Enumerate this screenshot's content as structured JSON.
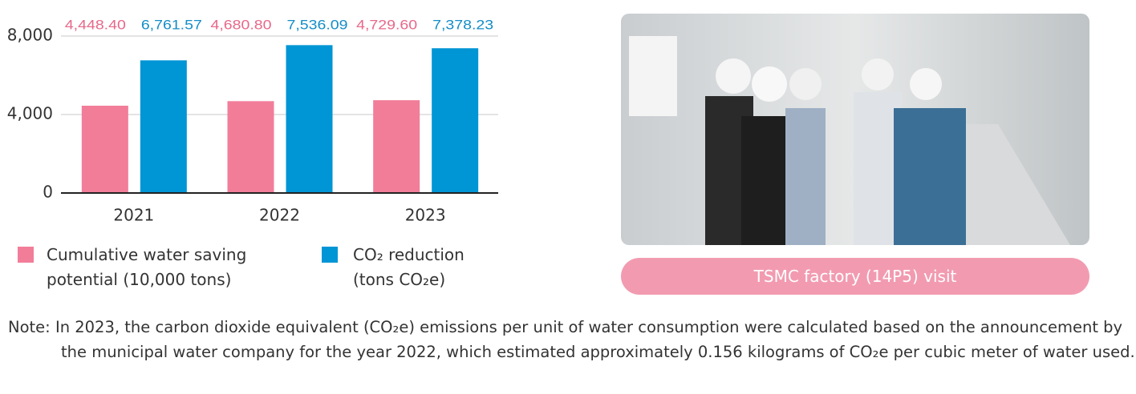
{
  "chart_data": {
    "type": "bar",
    "categories": [
      "2021",
      "2022",
      "2023"
    ],
    "series": [
      {
        "name": "Cumulative water saving potential (10,000 tons)",
        "color": "#f27d99",
        "label_color": "#e8678a",
        "values": [
          4448.4,
          4680.8,
          4729.6
        ],
        "value_labels": [
          "4,448.40",
          "4,680.80",
          "4,729.60"
        ]
      },
      {
        "name": "CO₂ reduction (tons CO₂e)",
        "color": "#0095d5",
        "label_color": "#138dc8",
        "values": [
          6761.57,
          7536.09,
          7378.23
        ],
        "value_labels": [
          "6,761.57",
          "7,536.09",
          "7,378.23"
        ]
      }
    ],
    "ylim": [
      0,
      8000
    ],
    "yticks": [
      0,
      {
        "value": 4000,
        "label": "4,000"
      },
      {
        "value": 8000,
        "label": "8,000"
      }
    ],
    "grid": true
  },
  "photo": {
    "caption": "TSMC factory (14P5) visit"
  },
  "note": {
    "label": "Note:",
    "text": "In 2023, the carbon dioxide equivalent (CO₂e) emissions per unit of water consumption were calculated based on the announcement by the municipal water company for the year 2022, which estimated approximately 0.156 kilograms of CO₂e per cubic meter of water used."
  }
}
